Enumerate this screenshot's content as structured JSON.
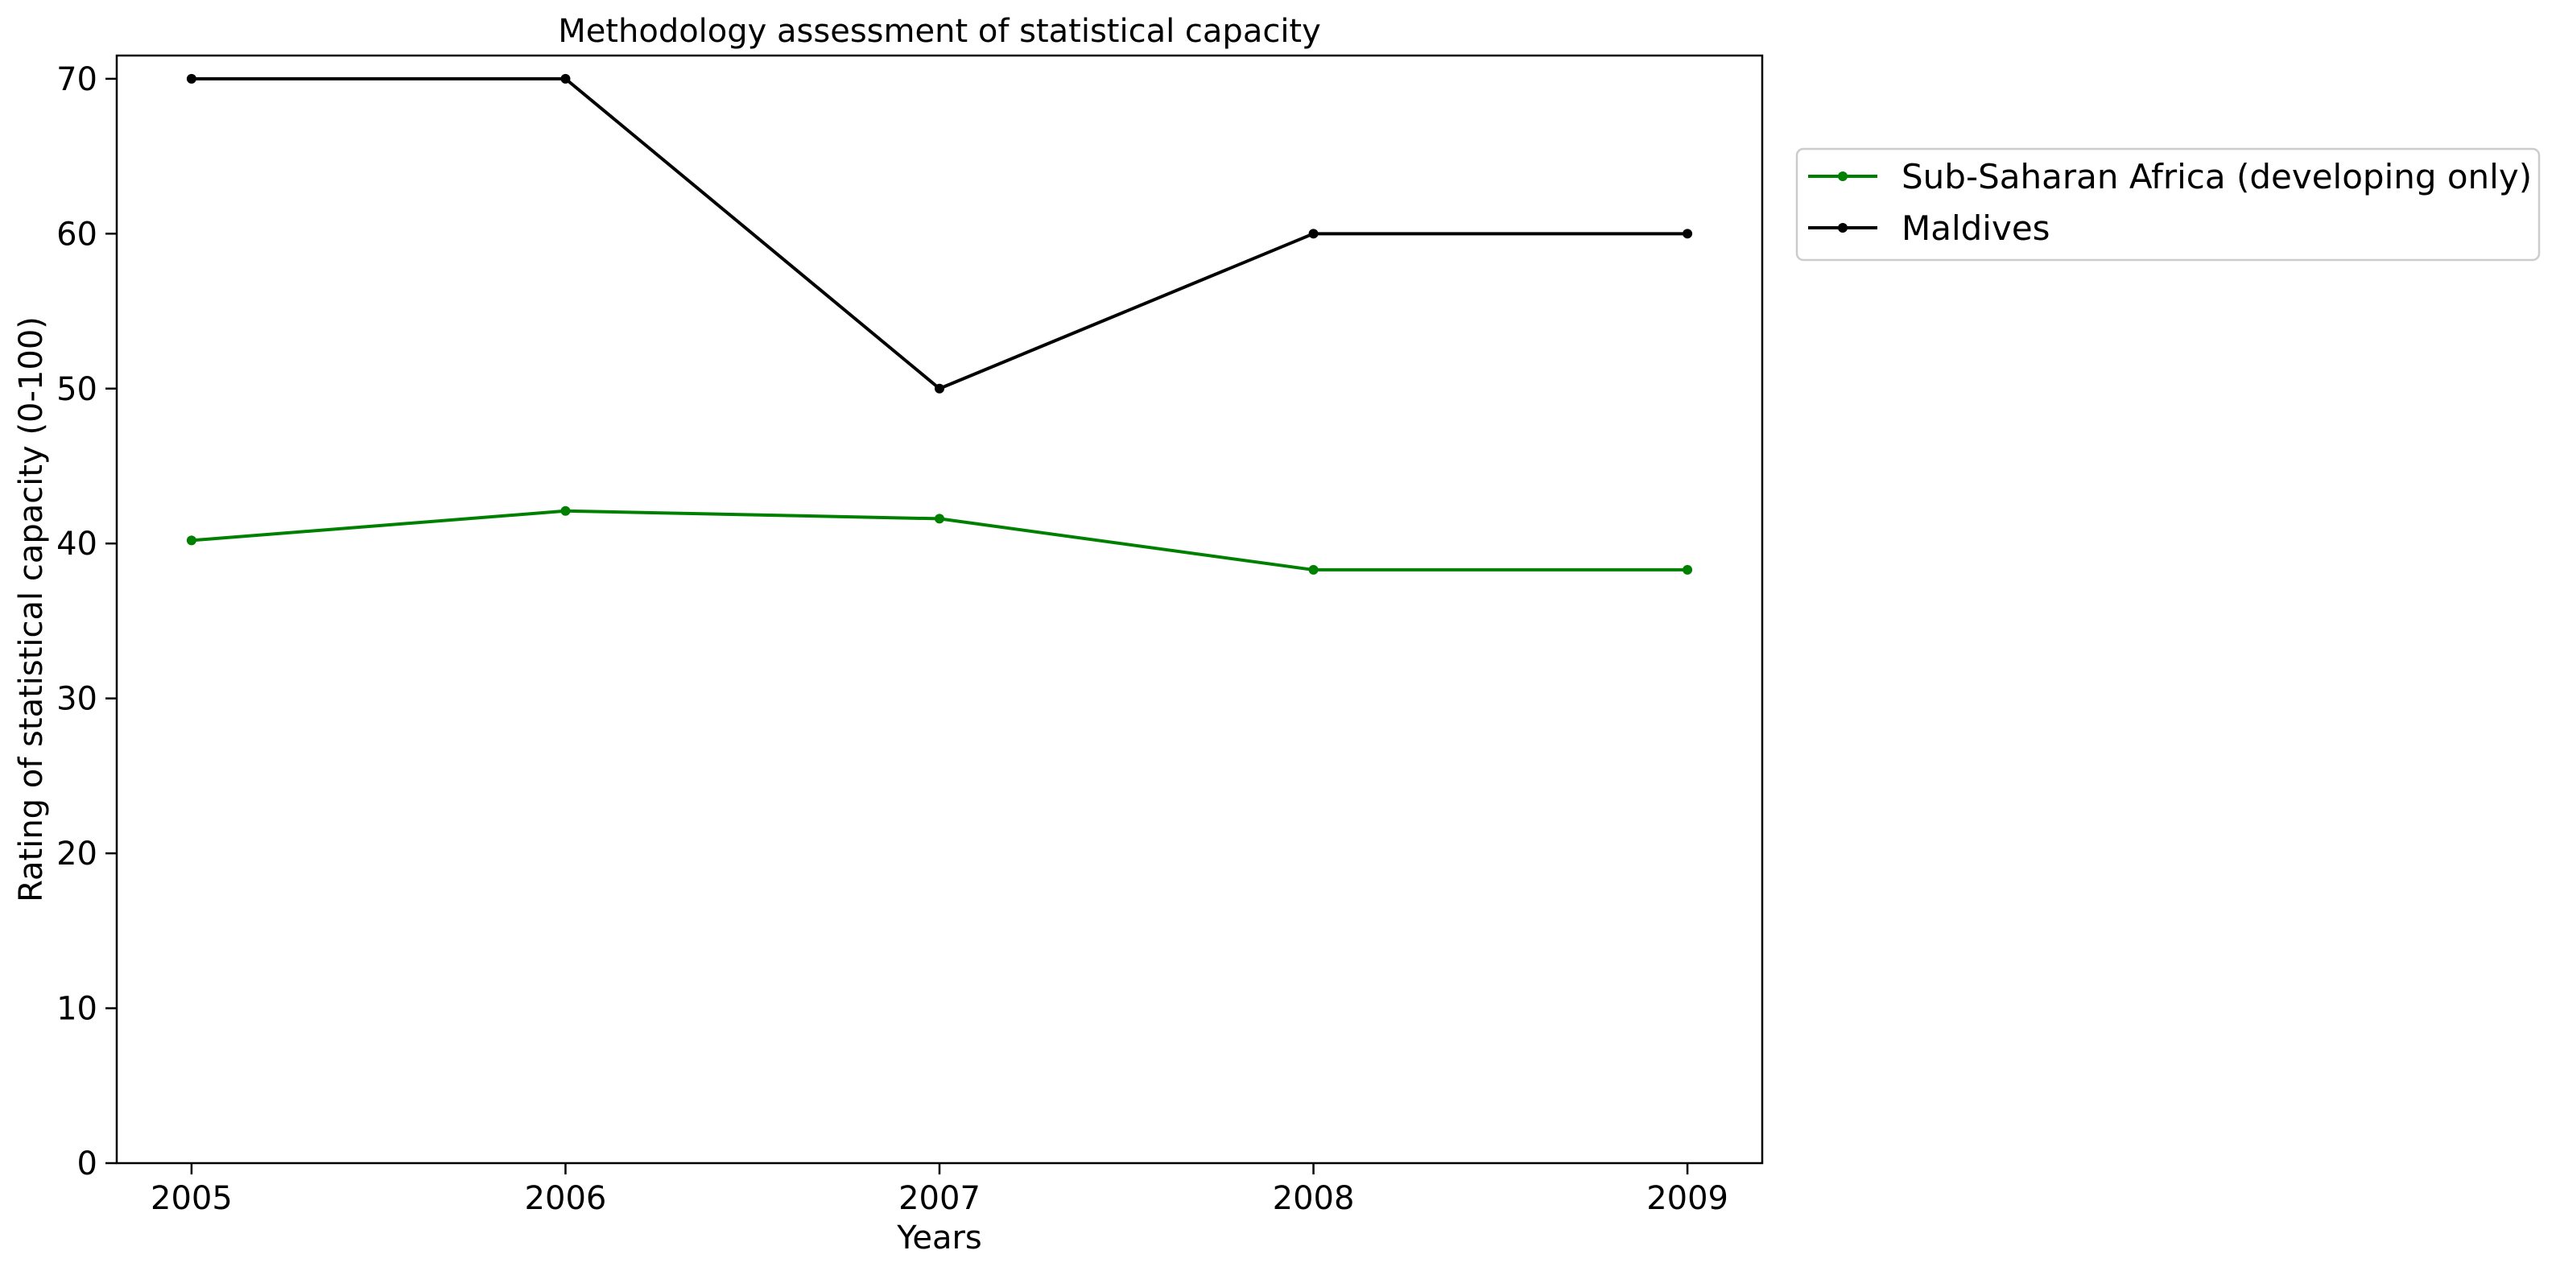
{
  "chart_data": {
    "type": "line",
    "title": "Methodology assessment of statistical capacity",
    "xlabel": "Years",
    "ylabel": "Rating of statistical capacity (0-100)",
    "x": [
      "2005",
      "2006",
      "2007",
      "2008",
      "2009"
    ],
    "xlim": [
      2004.8,
      2009.2
    ],
    "ylim": [
      0,
      71.5
    ],
    "yticks": [
      0,
      10,
      20,
      30,
      40,
      50,
      60,
      70
    ],
    "grid": false,
    "legend_position": "outside-top-right",
    "series": [
      {
        "name": "Sub-Saharan Africa (developing only)",
        "color": "#008000",
        "values": [
          40.2,
          42.1,
          41.6,
          38.3,
          38.3
        ]
      },
      {
        "name": "Maldives",
        "color": "#000000",
        "values": [
          70,
          70,
          50,
          60,
          60
        ]
      }
    ]
  }
}
